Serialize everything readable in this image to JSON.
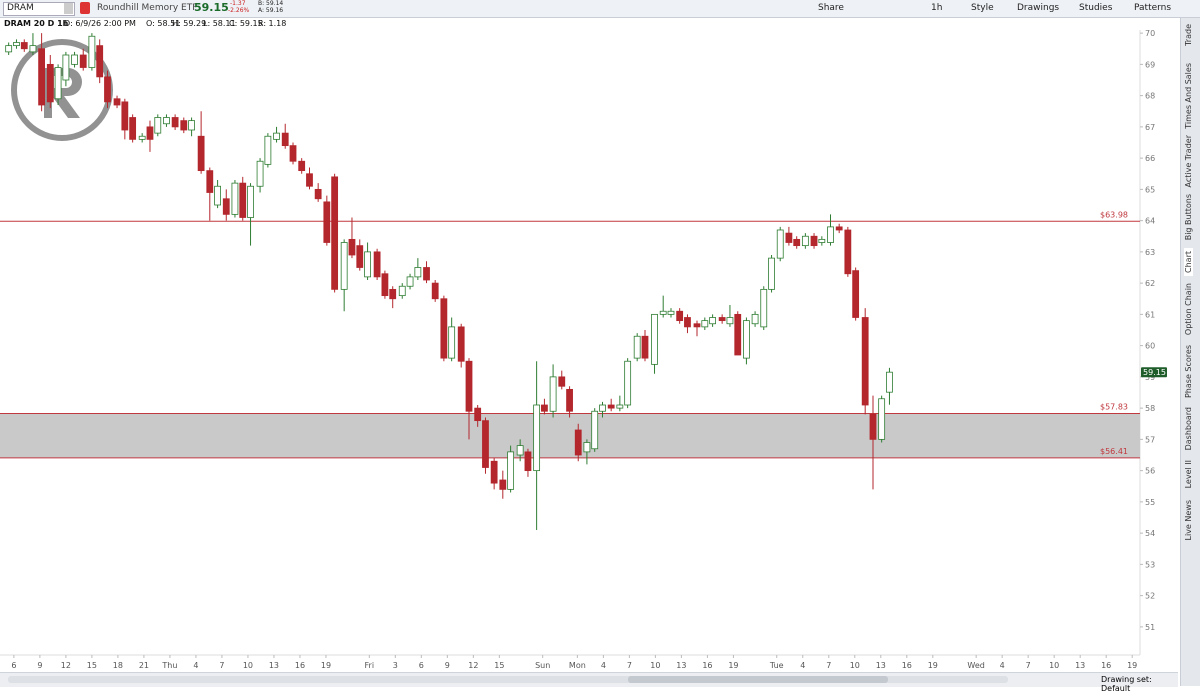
{
  "toolbar": {
    "symbol": "DRAM",
    "description": "Roundhill Memory ETF",
    "change": "-1.37",
    "change_pct": "-2.26%",
    "bid": "B: 59.14",
    "ask": "A: 59.16",
    "buttons": [
      "Share",
      "1h",
      "Style",
      "Drawings",
      "Studies",
      "Patterns"
    ]
  },
  "info_bar": [
    "DRAM 20 D 1h",
    "D: 6/9/26 2:00 PM",
    "O: 58.51",
    "H: 59.29",
    "L: 58.11",
    "C: 59.15",
    "R: 1.18"
  ],
  "sidebar": [
    "Trade",
    "Times And Sales",
    "Active Trader",
    "Big Buttons",
    "Chart",
    "Option Chain",
    "Phase Scores",
    "Dashboard",
    "Level II",
    "Live News"
  ],
  "footer": "Drawing set: Default",
  "chart_data": {
    "type": "candlestick",
    "last_price": 59.15,
    "up_color": "#2e7d32",
    "down_color": "#b3272d",
    "level_color": "#c0393f",
    "band_color": "#c9c9c9",
    "ylim": [
      50.1,
      70.1
    ],
    "yticks": [
      51,
      52,
      53,
      54,
      55,
      56,
      57,
      58,
      59,
      60,
      61,
      62,
      63,
      64,
      65,
      66,
      67,
      68,
      69,
      70
    ],
    "xlim": [
      -1.6,
      129.9
    ],
    "xticks": [
      {
        "value": 0,
        "label": "6"
      },
      {
        "value": 3,
        "label": "9"
      },
      {
        "value": 6,
        "label": "12"
      },
      {
        "value": 9,
        "label": "15"
      },
      {
        "value": 12,
        "label": "18"
      },
      {
        "value": 15,
        "label": "21"
      },
      {
        "value": 18,
        "label": "Thu"
      },
      {
        "value": 21,
        "label": "4"
      },
      {
        "value": 24,
        "label": "7"
      },
      {
        "value": 27,
        "label": "10"
      },
      {
        "value": 30,
        "label": "13"
      },
      {
        "value": 33,
        "label": "16"
      },
      {
        "value": 36,
        "label": "19"
      },
      {
        "value": 41,
        "label": "Fri"
      },
      {
        "value": 44,
        "label": "3"
      },
      {
        "value": 47,
        "label": "6"
      },
      {
        "value": 50,
        "label": "9"
      },
      {
        "value": 53,
        "label": "12"
      },
      {
        "value": 56,
        "label": "15"
      },
      {
        "value": 61,
        "label": "Sun"
      },
      {
        "value": 65,
        "label": "Mon"
      },
      {
        "value": 68,
        "label": "4"
      },
      {
        "value": 71,
        "label": "7"
      },
      {
        "value": 74,
        "label": "10"
      },
      {
        "value": 77,
        "label": "13"
      },
      {
        "value": 80,
        "label": "16"
      },
      {
        "value": 83,
        "label": "19"
      },
      {
        "value": 88,
        "label": "Tue"
      },
      {
        "value": 91,
        "label": "4"
      },
      {
        "value": 94,
        "label": "7"
      },
      {
        "value": 97,
        "label": "10"
      },
      {
        "value": 100,
        "label": "13"
      },
      {
        "value": 103,
        "label": "16"
      },
      {
        "value": 106,
        "label": "19"
      },
      {
        "value": 111,
        "label": "Wed"
      },
      {
        "value": 114,
        "label": "4"
      },
      {
        "value": 117,
        "label": "7"
      },
      {
        "value": 120,
        "label": "10"
      },
      {
        "value": 123,
        "label": "13"
      },
      {
        "value": 126,
        "label": "16"
      },
      {
        "value": 129,
        "label": "19"
      }
    ],
    "levels": [
      {
        "value": 63.98,
        "label": "$63.98"
      },
      {
        "value": 57.83,
        "label": "$57.83"
      },
      {
        "value": 56.41,
        "label": "$56.41"
      }
    ],
    "x": [
      -0.6,
      0.3,
      1.2,
      2.2,
      3.2,
      4.2,
      5.1,
      6.0,
      7.0,
      8.0,
      9.0,
      9.9,
      10.8,
      11.9,
      12.8,
      13.7,
      14.8,
      15.7,
      16.6,
      17.6,
      18.6,
      19.6,
      20.5,
      21.6,
      22.6,
      23.5,
      24.5,
      25.5,
      26.4,
      27.3,
      28.4,
      29.3,
      30.3,
      31.3,
      32.2,
      33.2,
      34.1,
      35.1,
      36.1,
      37.0,
      38.1,
      39.0,
      39.9,
      40.8,
      41.9,
      42.8,
      43.7,
      44.8,
      45.7,
      46.6,
      47.6,
      48.6,
      49.6,
      50.5,
      51.6,
      52.5,
      53.5,
      54.4,
      55.4,
      56.4,
      57.3,
      58.4,
      59.3,
      60.3,
      61.2,
      62.2,
      63.2,
      64.1,
      65.1,
      66.1,
      67.0,
      67.9,
      68.9,
      69.9,
      70.8,
      71.9,
      72.8,
      73.9,
      74.9,
      75.8,
      76.8,
      77.7,
      78.8,
      79.7,
      80.6,
      81.7,
      82.6,
      83.5,
      84.5,
      85.5,
      86.5,
      87.4,
      88.4,
      89.4,
      90.3,
      91.3,
      92.3,
      93.2,
      94.2,
      95.2,
      96.2,
      97.1,
      98.2,
      99.1,
      100.1,
      101.0
    ],
    "ohlc": [
      [
        69.4,
        69.7,
        69.3,
        69.6
      ],
      [
        69.6,
        69.8,
        69.5,
        69.7
      ],
      [
        69.7,
        69.8,
        69.4,
        69.5
      ],
      [
        69.4,
        70.0,
        69.3,
        69.6
      ],
      [
        69.5,
        70.0,
        67.5,
        67.7
      ],
      [
        69.0,
        69.3,
        67.6,
        67.8
      ],
      [
        67.9,
        69.0,
        67.7,
        68.9
      ],
      [
        68.5,
        69.4,
        68.3,
        69.3
      ],
      [
        69.0,
        69.4,
        68.9,
        69.3
      ],
      [
        69.3,
        69.5,
        68.8,
        68.9
      ],
      [
        68.9,
        70.0,
        68.8,
        69.9
      ],
      [
        69.6,
        69.8,
        68.4,
        68.6
      ],
      [
        68.6,
        68.8,
        67.6,
        67.8
      ],
      [
        67.9,
        68.0,
        67.6,
        67.7
      ],
      [
        67.8,
        67.9,
        66.6,
        66.9
      ],
      [
        67.3,
        67.4,
        66.5,
        66.6
      ],
      [
        66.6,
        66.8,
        66.5,
        66.7
      ],
      [
        67.0,
        67.2,
        66.2,
        66.6
      ],
      [
        66.8,
        67.4,
        66.7,
        67.3
      ],
      [
        67.1,
        67.4,
        67.0,
        67.3
      ],
      [
        67.3,
        67.4,
        66.9,
        67.0
      ],
      [
        67.2,
        67.3,
        66.8,
        66.9
      ],
      [
        66.9,
        67.3,
        66.7,
        67.2
      ],
      [
        66.7,
        67.5,
        65.5,
        65.6
      ],
      [
        65.6,
        65.7,
        64.0,
        64.9
      ],
      [
        64.5,
        65.3,
        64.4,
        65.1
      ],
      [
        64.7,
        65.0,
        64.0,
        64.2
      ],
      [
        64.2,
        65.3,
        64.1,
        65.2
      ],
      [
        65.2,
        65.4,
        64.0,
        64.1
      ],
      [
        64.1,
        65.2,
        63.2,
        65.1
      ],
      [
        65.1,
        66.0,
        64.9,
        65.9
      ],
      [
        65.8,
        66.8,
        65.7,
        66.7
      ],
      [
        66.6,
        67.0,
        66.5,
        66.8
      ],
      [
        66.8,
        67.1,
        66.3,
        66.4
      ],
      [
        66.4,
        66.5,
        65.8,
        65.9
      ],
      [
        65.9,
        66.0,
        65.5,
        65.6
      ],
      [
        65.5,
        65.7,
        65.0,
        65.1
      ],
      [
        65.0,
        65.2,
        64.6,
        64.7
      ],
      [
        64.6,
        64.8,
        63.2,
        63.3
      ],
      [
        65.4,
        65.5,
        61.7,
        61.8
      ],
      [
        61.8,
        63.4,
        61.1,
        63.3
      ],
      [
        63.4,
        64.1,
        62.8,
        62.9
      ],
      [
        63.2,
        63.4,
        62.4,
        62.5
      ],
      [
        62.2,
        63.3,
        62.1,
        63.0
      ],
      [
        63.0,
        63.1,
        62.1,
        62.2
      ],
      [
        62.3,
        62.4,
        61.5,
        61.6
      ],
      [
        61.8,
        61.9,
        61.2,
        61.5
      ],
      [
        61.6,
        62.0,
        61.5,
        61.9
      ],
      [
        61.9,
        62.3,
        61.8,
        62.2
      ],
      [
        62.2,
        62.8,
        62.1,
        62.5
      ],
      [
        62.5,
        62.7,
        62.0,
        62.1
      ],
      [
        62.0,
        62.1,
        61.4,
        61.5
      ],
      [
        61.5,
        61.6,
        59.5,
        59.6
      ],
      [
        59.6,
        60.9,
        59.5,
        60.6
      ],
      [
        60.6,
        60.7,
        59.3,
        59.5
      ],
      [
        59.5,
        59.6,
        57.0,
        57.9
      ],
      [
        58.0,
        58.1,
        57.4,
        57.6
      ],
      [
        57.6,
        57.7,
        55.9,
        56.1
      ],
      [
        56.3,
        56.4,
        55.4,
        55.6
      ],
      [
        55.7,
        56.0,
        55.1,
        55.4
      ],
      [
        55.4,
        56.8,
        55.3,
        56.6
      ],
      [
        56.5,
        57.0,
        56.3,
        56.8
      ],
      [
        56.6,
        56.7,
        55.8,
        56.0
      ],
      [
        56.0,
        59.5,
        54.1,
        58.1
      ],
      [
        58.1,
        58.3,
        57.8,
        57.9
      ],
      [
        57.9,
        59.4,
        57.7,
        59.0
      ],
      [
        59.0,
        59.2,
        58.6,
        58.7
      ],
      [
        58.6,
        58.7,
        57.7,
        57.9
      ],
      [
        57.3,
        57.5,
        56.3,
        56.5
      ],
      [
        56.6,
        57.0,
        56.2,
        56.9
      ],
      [
        56.7,
        58.0,
        56.6,
        57.9
      ],
      [
        57.9,
        58.2,
        57.7,
        58.1
      ],
      [
        58.1,
        58.3,
        57.9,
        58.0
      ],
      [
        58.0,
        58.4,
        57.9,
        58.1
      ],
      [
        58.1,
        59.6,
        58.0,
        59.5
      ],
      [
        59.6,
        60.4,
        59.5,
        60.3
      ],
      [
        60.3,
        60.5,
        59.5,
        59.6
      ],
      [
        59.4,
        61.0,
        59.1,
        61.0
      ],
      [
        61.0,
        61.6,
        60.9,
        61.1
      ],
      [
        61.0,
        61.2,
        60.9,
        61.1
      ],
      [
        61.1,
        61.2,
        60.7,
        60.8
      ],
      [
        60.9,
        61.0,
        60.4,
        60.6
      ],
      [
        60.7,
        60.8,
        60.3,
        60.6
      ],
      [
        60.6,
        60.9,
        60.5,
        60.8
      ],
      [
        60.7,
        61.0,
        60.6,
        60.9
      ],
      [
        60.9,
        61.0,
        60.7,
        60.8
      ],
      [
        60.7,
        61.3,
        60.6,
        60.9
      ],
      [
        61.0,
        61.1,
        59.7,
        59.7
      ],
      [
        59.6,
        60.9,
        59.4,
        60.8
      ],
      [
        60.7,
        61.1,
        60.6,
        61.0
      ],
      [
        60.6,
        61.9,
        60.5,
        61.8
      ],
      [
        61.8,
        62.9,
        61.7,
        62.8
      ],
      [
        62.8,
        63.8,
        62.7,
        63.7
      ],
      [
        63.6,
        63.8,
        63.2,
        63.3
      ],
      [
        63.4,
        63.5,
        63.1,
        63.2
      ],
      [
        63.2,
        63.6,
        63.1,
        63.5
      ],
      [
        63.5,
        63.6,
        63.1,
        63.2
      ],
      [
        63.3,
        63.5,
        63.2,
        63.4
      ],
      [
        63.3,
        64.2,
        63.2,
        63.8
      ],
      [
        63.8,
        63.9,
        63.6,
        63.7
      ],
      [
        63.7,
        63.8,
        62.2,
        62.3
      ],
      [
        62.4,
        62.5,
        60.8,
        60.9
      ],
      [
        60.9,
        61.2,
        57.8,
        58.1
      ],
      [
        57.8,
        58.4,
        55.4,
        57.0
      ],
      [
        57.0,
        58.4,
        56.9,
        58.3
      ],
      [
        58.51,
        59.29,
        58.11,
        59.15
      ]
    ]
  }
}
